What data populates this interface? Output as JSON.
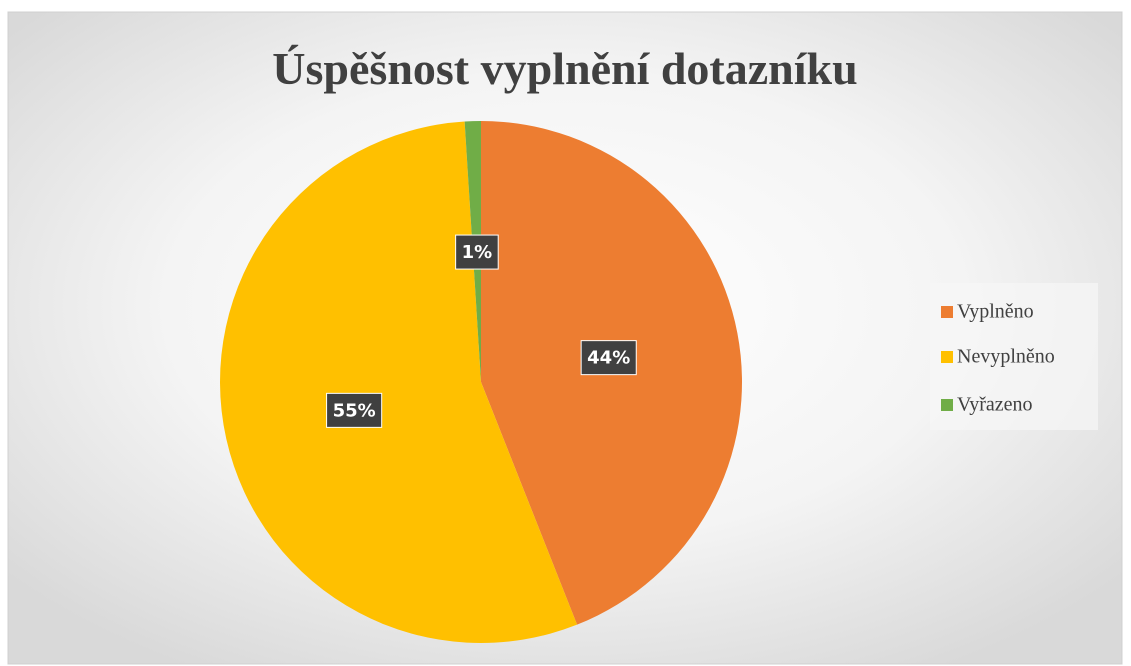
{
  "chart_data": {
    "type": "pie",
    "title": "Úspěšnost vyplnění dotazníku",
    "categories": [
      "Vyplněno",
      "Nevyplněno",
      "Vyřazeno"
    ],
    "values": [
      44,
      55,
      1
    ],
    "value_labels": [
      "44%",
      "55%",
      "1%"
    ],
    "colors": [
      "#ED7D31",
      "#FFC000",
      "#70AD47"
    ],
    "legend": "right"
  }
}
